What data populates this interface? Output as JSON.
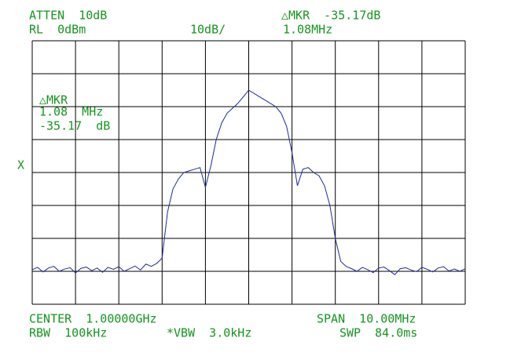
{
  "chart_data": {
    "type": "line",
    "annotations": {
      "atten": "ATTEN  10dB",
      "rl": "RL  0dBm",
      "scale": "10dB/",
      "mkr_top": "△MKR  -35.17dB",
      "mkr_freq_top": "1.08MHz",
      "mkr_label": "△MKR",
      "mkr_freq": "1.08  MHz",
      "mkr_level": "-35.17  dB",
      "x_mark": "X",
      "center": "CENTER  1.00000GHz",
      "span": "SPAN  10.00MHz",
      "rbw": "RBW  100kHz",
      "vbw": "*VBW  3.0kHz",
      "swp": "SWP  84.0ms"
    },
    "x": [
      995,
      995.125,
      995.25,
      995.375,
      995.5,
      995.625,
      995.75,
      995.875,
      996,
      996.125,
      996.25,
      996.375,
      996.5,
      996.625,
      996.75,
      996.875,
      997,
      997.125,
      997.25,
      997.375,
      997.5,
      997.625,
      997.75,
      997.875,
      998,
      998.125,
      998.25,
      998.375,
      998.5,
      998.625,
      998.75,
      998.875,
      999,
      999.125,
      999.25,
      999.375,
      999.5,
      999.625,
      999.75,
      999.875,
      1000,
      1000.125,
      1000.25,
      1000.375,
      1000.5,
      1000.625,
      1000.75,
      1000.875,
      1001,
      1001.125,
      1001.25,
      1001.375,
      1001.5,
      1001.625,
      1001.75,
      1001.875,
      1002,
      1002.125,
      1002.25,
      1002.375,
      1002.5,
      1002.625,
      1002.75,
      1002.875,
      1003,
      1003.125,
      1003.25,
      1003.375,
      1003.5,
      1003.625,
      1003.75,
      1003.875,
      1004,
      1004.125,
      1004.25,
      1004.375,
      1004.5,
      1004.625,
      1004.75,
      1004.875,
      1005
    ],
    "series": [
      {
        "color": "#1c2a9c",
        "values": [
          -69.5,
          -68.8,
          -70.2,
          -69.0,
          -68.5,
          -70.0,
          -69.3,
          -68.9,
          -70.5,
          -69.1,
          -68.7,
          -69.8,
          -69.0,
          -70.3,
          -68.8,
          -69.4,
          -68.6,
          -70.0,
          -69.2,
          -68.4,
          -69.6,
          -67.8,
          -68.5,
          -67.6,
          -66.0,
          -52,
          -45,
          -42,
          -40,
          -39.5,
          -39,
          -38.5,
          -44.5,
          -38,
          -30,
          -25,
          -22,
          -20.5,
          -19,
          -17,
          -15,
          -16,
          -17,
          -18,
          -19,
          -20,
          -22,
          -26,
          -34,
          -44,
          -39,
          -38.5,
          -40,
          -41,
          -44,
          -50,
          -60,
          -67,
          -68.5,
          -69.2,
          -70.0,
          -68.8,
          -69.5,
          -70.4,
          -69.0,
          -68.7,
          -69.8,
          -71,
          -69.2,
          -68.9,
          -69.6,
          -70.1,
          -68.8,
          -69.4,
          -70.2,
          -69.0,
          -68.6,
          -69.9,
          -69.3,
          -70.0,
          -69.2
        ]
      }
    ],
    "xlim": [
      995,
      1005
    ],
    "ylim": [
      -80,
      0
    ],
    "grid": true
  }
}
